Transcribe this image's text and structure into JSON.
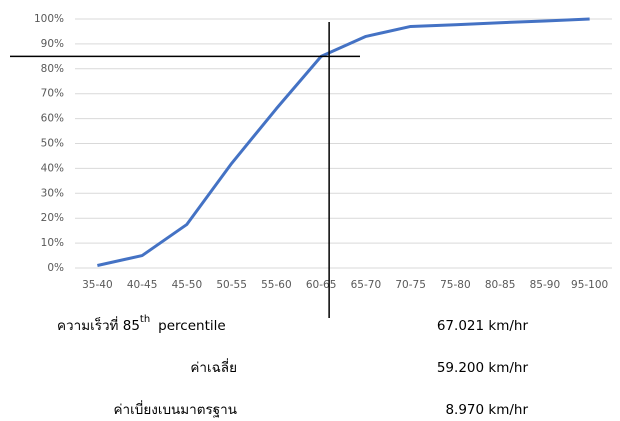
{
  "chart_data": {
    "type": "line",
    "categories": [
      "35-40",
      "40-45",
      "45-50",
      "50-55",
      "55-60",
      "60-65",
      "65-70",
      "70-75",
      "75-80",
      "80-85",
      "85-90",
      "95-100"
    ],
    "series": [
      {
        "name": null,
        "color": "#4472c4",
        "values": [
          1,
          5,
          17.5,
          42,
          64,
          85,
          93,
          97,
          97.7,
          98.5,
          99.2,
          100
        ]
      }
    ],
    "ylim": [
      0,
      100
    ],
    "yticks": [
      {
        "value": 0,
        "label": "0%"
      },
      {
        "value": 10,
        "label": "10%"
      },
      {
        "value": 20,
        "label": "20%"
      },
      {
        "value": 30,
        "label": "30%"
      },
      {
        "value": 40,
        "label": "40%"
      },
      {
        "value": 50,
        "label": "50%"
      },
      {
        "value": 60,
        "label": "60%"
      },
      {
        "value": 70,
        "label": "70%"
      },
      {
        "value": 80,
        "label": "80%"
      },
      {
        "value": 90,
        "label": "90%"
      },
      {
        "value": 100,
        "label": "100%"
      }
    ],
    "grid": true,
    "hline": 85
  },
  "stats": [
    {
      "label": "ความเร็วที่ 85",
      "sup": "th",
      "label_end": "percentile",
      "value": "67.021 km/hr"
    },
    {
      "label": "ค่าเฉลี่ย",
      "value": "59.200 km/hr"
    },
    {
      "label": "ค่าเบี่ยงเบนมาตรฐาน",
      "value": "8.970 km/hr"
    }
  ]
}
